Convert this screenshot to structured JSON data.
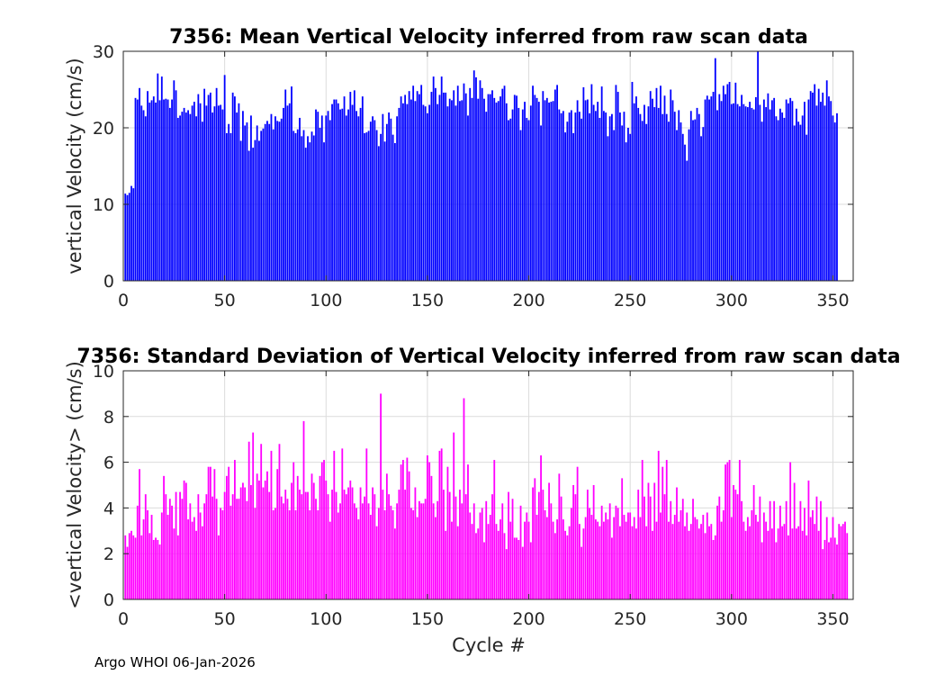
{
  "footer_text": "Argo WHOI 06-Jan-2026",
  "chart_data": [
    {
      "type": "bar",
      "title": "7356: Mean Vertical Velocity inferred from raw scan data",
      "xlabel": "",
      "ylabel": "vertical Velocity (cm/s)",
      "xlim": [
        0,
        360
      ],
      "ylim": [
        0,
        30
      ],
      "xticks": [
        0,
        50,
        100,
        150,
        200,
        250,
        300,
        350
      ],
      "yticks": [
        0,
        10,
        20,
        30
      ],
      "grid": true,
      "bar_color": "#0000ff",
      "x_start": 1,
      "values": [
        11.4,
        11.2,
        11.5,
        12.4,
        12.1,
        23.9,
        23.7,
        25.2,
        22.9,
        22.3,
        21.5,
        24.8,
        23.3,
        23.6,
        24.1,
        23.3,
        27.1,
        23.6,
        26.7,
        23.7,
        23.8,
        23.7,
        22.6,
        23.7,
        26.2,
        24.9,
        21.3,
        21.6,
        22.1,
        22.6,
        22.0,
        22.3,
        21.8,
        22.9,
        23.4,
        21.5,
        24.4,
        23.2,
        20.8,
        25.1,
        22.9,
        24.3,
        24.6,
        22.0,
        22.8,
        25.2,
        22.9,
        23.0,
        22.4,
        26.9,
        19.3,
        20.5,
        19.3,
        24.6,
        24.1,
        22.0,
        23.2,
        18.3,
        22.2,
        20.3,
        20.7,
        17.0,
        21.6,
        17.4,
        18.4,
        20.3,
        18.3,
        19.6,
        19.9,
        20.5,
        20.9,
        20.5,
        21.8,
        19.8,
        21.5,
        20.9,
        20.8,
        21.2,
        22.6,
        25.0,
        22.9,
        23.2,
        25.4,
        19.6,
        19.3,
        19.8,
        21.3,
        18.9,
        19.7,
        17.4,
        18.9,
        18.1,
        19.5,
        19.0,
        22.4,
        22.1,
        20.0,
        21.6,
        18.1,
        21.6,
        22.2,
        21.0,
        23.1,
        23.7,
        23.7,
        23.2,
        22.4,
        22.5,
        24.1,
        21.6,
        22.4,
        24.7,
        23.0,
        24.9,
        22.2,
        21.5,
        22.6,
        24.1,
        19.3,
        19.4,
        19.6,
        20.8,
        21.5,
        21.0,
        19.7,
        17.6,
        19.2,
        21.8,
        18.2,
        20.5,
        22.0,
        21.2,
        19.1,
        18.0,
        21.5,
        22.6,
        24.1,
        23.2,
        24.3,
        23.1,
        24.8,
        23.7,
        25.5,
        23.5,
        24.8,
        24.4,
        25.6,
        23.0,
        22.8,
        21.9,
        23.0,
        24.7,
        26.7,
        25.2,
        23.1,
        24.3,
        26.7,
        24.6,
        24.6,
        22.8,
        23.8,
        23.6,
        24.9,
        22.9,
        25.5,
        23.5,
        23.6,
        25.8,
        24.5,
        21.6,
        25.2,
        23.9,
        27.5,
        26.6,
        23.8,
        26.2,
        25.2,
        23.8,
        22.1,
        24.4,
        24.4,
        24.9,
        23.9,
        23.3,
        23.5,
        24.1,
        25.1,
        25.5,
        23.2,
        21.0,
        21.2,
        22.4,
        24.3,
        24.2,
        22.6,
        19.7,
        22.4,
        23.4,
        21.3,
        21.0,
        22.9,
        25.5,
        24.3,
        23.9,
        23.4,
        20.3,
        24.8,
        23.6,
        23.9,
        23.3,
        23.4,
        23.5,
        25.0,
        25.6,
        22.4,
        21.9,
        22.2,
        19.4,
        20.8,
        22.0,
        22.3,
        19.3,
        22.0,
        23.6,
        22.1,
        21.2,
        25.3,
        23.6,
        23.7,
        21.9,
        25.7,
        23.0,
        22.2,
        23.4,
        21.3,
        25.4,
        22.2,
        22.0,
        18.9,
        21.5,
        21.8,
        19.7,
        25.6,
        24.7,
        22.0,
        20.3,
        22.1,
        18.1,
        20.0,
        19.2,
        26.0,
        23.2,
        24.1,
        22.6,
        21.8,
        20.9,
        23.0,
        20.5,
        22.8,
        24.8,
        23.8,
        22.7,
        25.2,
        22.6,
        25.5,
        21.8,
        24.2,
        21.8,
        20.8,
        25.0,
        23.6,
        22.1,
        19.7,
        22.3,
        20.7,
        19.2,
        17.8,
        15.7,
        19.8,
        22.2,
        21.0,
        21.1,
        22.6,
        21.8,
        18.9,
        20.1,
        23.7,
        24.2,
        23.7,
        24.1,
        24.7,
        29.1,
        22.3,
        24.4,
        23.5,
        25.5,
        24.4,
        25.7,
        26.0,
        23.1,
        23.2,
        25.9,
        23.1,
        22.8,
        24.3,
        23.1,
        22.8,
        22.7,
        23.4,
        22.6,
        22.4,
        24.0,
        30.1,
        23.0,
        20.8,
        23.7,
        22.7,
        24.5,
        22.4,
        23.6,
        23.9,
        21.5,
        21.0,
        22.5,
        22.0,
        21.3,
        23.7,
        23.2,
        23.9,
        23.5,
        20.3,
        22.5,
        20.8,
        20.4,
        21.6,
        23.4,
        19.1,
        23.7,
        24.8,
        24.6,
        25.7,
        22.9,
        25.1,
        23.4,
        24.6,
        22.9,
        26.2,
        24.1,
        23.5,
        21.6,
        20.7,
        21.9
      ]
    },
    {
      "type": "bar",
      "title": "7356: Standard Deviation of Vertical Velocity inferred from raw scan data",
      "xlabel": "Cycle #",
      "ylabel": "<vertical Velocity> (cm/s)",
      "xlim": [
        0,
        360
      ],
      "ylim": [
        0,
        10
      ],
      "xticks": [
        0,
        50,
        100,
        150,
        200,
        250,
        300,
        350
      ],
      "yticks": [
        0,
        2,
        4,
        6,
        8,
        10
      ],
      "grid": true,
      "bar_color": "#ff00ff",
      "x_start": 1,
      "values": [
        2.8,
        2.3,
        2.9,
        3.0,
        2.8,
        2.7,
        4.1,
        5.7,
        2.8,
        3.5,
        4.6,
        3.9,
        2.9,
        3.7,
        2.6,
        2.7,
        2.6,
        2.4,
        3.8,
        5.4,
        4.6,
        3.7,
        4.4,
        4.1,
        3.1,
        4.7,
        2.8,
        4.7,
        4.4,
        5.2,
        5.1,
        3.5,
        4.2,
        3.4,
        3.6,
        3.0,
        4.6,
        3.8,
        3.2,
        4.2,
        4.6,
        5.8,
        5.8,
        4.5,
        5.7,
        4.4,
        2.8,
        4.0,
        3.9,
        4.7,
        5.4,
        5.8,
        4.1,
        4.6,
        6.1,
        4.4,
        4.4,
        4.9,
        5.1,
        4.9,
        4.3,
        6.9,
        5.0,
        7.3,
        4.0,
        5.5,
        5.2,
        6.8,
        4.9,
        5.2,
        5.6,
        4.7,
        6.5,
        3.9,
        4.0,
        5.7,
        6.8,
        4.5,
        4.2,
        4.8,
        4.4,
        3.9,
        5.1,
        6.0,
        3.9,
        5.4,
        4.8,
        4.6,
        7.8,
        4.7,
        4.7,
        3.9,
        5.5,
        5.1,
        4.4,
        3.9,
        5.4,
        6.0,
        6.1,
        5.2,
        4.6,
        3.4,
        4.8,
        6.5,
        4.7,
        3.8,
        4.2,
        6.6,
        4.8,
        4.6,
        4.9,
        5.2,
        4.9,
        4.2,
        4.0,
        3.5,
        4.9,
        4.2,
        4.5,
        6.6,
        4.2,
        3.7,
        4.9,
        4.6,
        3.2,
        4.0,
        9.0,
        4.8,
        3.9,
        5.5,
        4.6,
        4.1,
        3.9,
        3.1,
        4.2,
        4.8,
        5.9,
        6.1,
        4.8,
        6.2,
        5.6,
        4.0,
        3.9,
        4.9,
        3.6,
        4.3,
        4.2,
        4.2,
        4.4,
        6.3,
        6.0,
        5.4,
        4.2,
        3.6,
        4.3,
        6.5,
        6.6,
        4.8,
        3.0,
        5.8,
        4.7,
        3.4,
        7.3,
        4.5,
        3.2,
        4.8,
        4.2,
        8.8,
        4.6,
        5.9,
        3.8,
        3.3,
        4.2,
        2.9,
        3.1,
        3.8,
        4.0,
        2.5,
        4.3,
        3.3,
        3.7,
        4.6,
        6.1,
        3.3,
        3.0,
        3.5,
        4.2,
        2.9,
        2.2,
        4.7,
        3.4,
        4.4,
        2.7,
        2.7,
        2.6,
        4.1,
        2.3,
        3.4,
        3.8,
        3.4,
        2.5,
        4.9,
        5.3,
        3.7,
        4.7,
        6.3,
        4.8,
        3.9,
        3.6,
        5.1,
        4.2,
        3.4,
        2.9,
        3.5,
        5.5,
        4.5,
        3.5,
        3.0,
        2.8,
        3.2,
        4.0,
        5.0,
        4.6,
        5.8,
        3.3,
        2.3,
        3.1,
        3.6,
        4.8,
        4.0,
        3.7,
        5.0,
        3.5,
        3.4,
        3.2,
        4.1,
        3.4,
        3.8,
        3.5,
        4.2,
        2.7,
        3.6,
        4.1,
        4.0,
        3.2,
        5.3,
        3.7,
        3.4,
        3.8,
        3.8,
        3.2,
        3.6,
        3.1,
        4.8,
        3.6,
        6.1,
        4.5,
        3.2,
        5.1,
        4.5,
        3.0,
        5.1,
        3.4,
        6.5,
        3.8,
        5.8,
        4.6,
        6.1,
        3.4,
        4.3,
        3.3,
        3.7,
        4.9,
        3.4,
        3.9,
        4.4,
        3.2,
        3.8,
        3.0,
        3.3,
        4.4,
        3.6,
        3.5,
        3.1,
        3.3,
        3.7,
        2.9,
        3.8,
        3.2,
        3.3,
        2.6,
        2.8,
        4.1,
        4.5,
        3.4,
        3.9,
        5.9,
        6.0,
        6.1,
        3.6,
        5.0,
        4.8,
        4.6,
        6.1,
        4.3,
        3.4,
        3.0,
        3.6,
        3.2,
        3.9,
        5.0,
        3.7,
        3.4,
        4.5,
        2.5,
        3.8,
        3.4,
        3.0,
        4.3,
        3.1,
        4.3,
        2.5,
        3.1,
        4.1,
        3.2,
        3.3,
        4.3,
        2.8,
        6.0,
        3.1,
        5.1,
        3.1,
        3.2,
        4.3,
        3.0,
        4.0,
        2.8,
        5.2,
        3.6,
        3.9,
        3.3,
        4.5,
        3.0,
        4.3,
        2.2,
        2.6,
        3.6,
        2.5,
        2.7,
        3.6,
        2.7,
        2.4,
        3.3,
        3.2,
        3.3,
        3.4,
        2.9
      ]
    }
  ]
}
